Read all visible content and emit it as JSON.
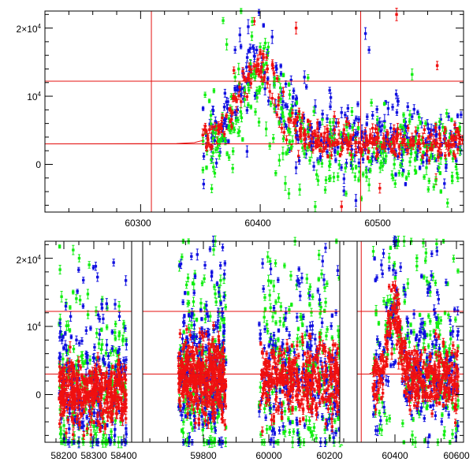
{
  "chart_data": [
    {
      "type": "scatter",
      "panel": "top",
      "title": "",
      "xlabel": "",
      "ylabel": "",
      "xlim": [
        60220,
        60570
      ],
      "ylim": [
        -7000,
        22500
      ],
      "xticks": [
        {
          "value": 60300,
          "label": "60300"
        },
        {
          "value": 60400,
          "label": "60400"
        },
        {
          "value": 60500,
          "label": "60500"
        }
      ],
      "xminor_step": 20,
      "yticks": [
        {
          "value": 20000,
          "label": "2×10",
          "exp": "4"
        },
        {
          "value": 10000,
          "label": "10",
          "exp": "4"
        },
        {
          "value": 0,
          "label": "0",
          "exp": ""
        }
      ],
      "yminor_step": 2000,
      "reference_lines": {
        "color": "#e4100f",
        "vertical_x": [
          60309,
          60484
        ],
        "horizontal_y": [
          12200,
          3000
        ]
      },
      "model_curve": {
        "color": "#e4100f",
        "points": [
          [
            60220,
            3000
          ],
          [
            60330,
            3050
          ],
          [
            60345,
            3200
          ],
          [
            60352,
            3500
          ]
        ]
      },
      "series": [
        {
          "color": "#1010e0",
          "points": [
            [
              60355,
              4200
            ],
            [
              60362,
              3500
            ],
            [
              60366,
              5200
            ],
            [
              60370,
              6500
            ],
            [
              60373,
              9200
            ],
            [
              60376,
              7100
            ],
            [
              60379,
              16800
            ],
            [
              60381,
              8000
            ],
            [
              60383,
              19000
            ],
            [
              60386,
              9600
            ],
            [
              60388,
              12400
            ],
            [
              60390,
              20200
            ],
            [
              60392,
              14400
            ],
            [
              60395,
              15900
            ],
            [
              60397,
              10300
            ],
            [
              60399,
              22300
            ],
            [
              60401,
              13900
            ],
            [
              60404,
              11100
            ],
            [
              60407,
              9300
            ],
            [
              60410,
              18700
            ],
            [
              60413,
              8500
            ],
            [
              60416,
              6300
            ],
            [
              60419,
              9200
            ],
            [
              60422,
              5500
            ],
            [
              60425,
              7200
            ],
            [
              60428,
              10800
            ],
            [
              60431,
              4200
            ],
            [
              60434,
              6000
            ],
            [
              60437,
              12800
            ],
            [
              60440,
              5200
            ],
            [
              60443,
              3300
            ],
            [
              60446,
              8500
            ],
            [
              60450,
              5800
            ],
            [
              60453,
              3200
            ],
            [
              60456,
              6700
            ],
            [
              60459,
              9800
            ],
            [
              60462,
              4500
            ],
            [
              60465,
              2500
            ],
            [
              60468,
              7600
            ],
            [
              60472,
              3800
            ],
            [
              60475,
              5600
            ],
            [
              60479,
              1300
            ],
            [
              60482,
              2500
            ],
            [
              60485,
              4800
            ],
            [
              60488,
              19200
            ],
            [
              60491,
              16800
            ],
            [
              60494,
              7200
            ],
            [
              60497,
              3500
            ],
            [
              60500,
              5500
            ],
            [
              60504,
              6300
            ],
            [
              60507,
              8200
            ],
            [
              60511,
              4300
            ],
            [
              60515,
              9300
            ],
            [
              60519,
              5200
            ],
            [
              60523,
              3900
            ],
            [
              60527,
              7000
            ],
            [
              60531,
              4600
            ],
            [
              60535,
              6100
            ],
            [
              60539,
              3300
            ],
            [
              60543,
              5000
            ],
            [
              60547,
              4200
            ],
            [
              60551,
              6600
            ],
            [
              60555,
              3800
            ],
            [
              60559,
              4500
            ],
            [
              60563,
              5300
            ],
            [
              60567,
              4000
            ],
            [
              60480,
              -5300
            ],
            [
              60470,
              -3900
            ],
            [
              60430,
              -500
            ],
            [
              60389,
              1900
            ]
          ]
        },
        {
          "color": "#10ee10",
          "points": [
            [
              60362,
              -1300
            ],
            [
              60366,
              3000
            ],
            [
              60369,
              21100
            ],
            [
              60372,
              17600
            ],
            [
              60374,
              1000
            ],
            [
              60377,
              -600
            ],
            [
              60379,
              12800
            ],
            [
              60382,
              14000
            ],
            [
              60384,
              22500
            ],
            [
              60387,
              9500
            ],
            [
              60390,
              8700
            ],
            [
              60393,
              18800
            ],
            [
              60396,
              7700
            ],
            [
              60399,
              6200
            ],
            [
              60402,
              11800
            ],
            [
              60405,
              5200
            ],
            [
              60408,
              2700
            ],
            [
              60411,
              3800
            ],
            [
              60413,
              -1300
            ],
            [
              60416,
              600
            ],
            [
              60419,
              1600
            ],
            [
              60421,
              -2800
            ],
            [
              60424,
              -4300
            ],
            [
              60427,
              3400
            ],
            [
              60430,
              7500
            ],
            [
              60433,
              -3700
            ],
            [
              60436,
              5300
            ],
            [
              60440,
              12700
            ],
            [
              60443,
              2000
            ],
            [
              60446,
              -6200
            ],
            [
              60449,
              3900
            ],
            [
              60452,
              6600
            ],
            [
              60455,
              -2300
            ],
            [
              60458,
              1100
            ],
            [
              60462,
              4400
            ],
            [
              60465,
              -1800
            ],
            [
              60469,
              3200
            ],
            [
              60472,
              5700
            ],
            [
              60476,
              200
            ],
            [
              60480,
              4100
            ],
            [
              60483,
              -1100
            ],
            [
              60487,
              2800
            ],
            [
              60491,
              -3000
            ],
            [
              60495,
              1700
            ],
            [
              60499,
              5100
            ],
            [
              60503,
              800
            ],
            [
              60507,
              3500
            ],
            [
              60511,
              -2000
            ],
            [
              60515,
              4600
            ],
            [
              60519,
              600
            ],
            [
              60523,
              2900
            ],
            [
              60527,
              13200
            ],
            [
              60531,
              1400
            ],
            [
              60535,
              3600
            ],
            [
              60539,
              -500
            ],
            [
              60543,
              2300
            ],
            [
              60547,
              5800
            ],
            [
              60551,
              900
            ],
            [
              60555,
              3100
            ],
            [
              60559,
              1800
            ],
            [
              60563,
              4300
            ],
            [
              60567,
              2100
            ]
          ]
        },
        {
          "color": "#f01010",
          "points": [
            [
              60352,
              4300
            ],
            [
              60356,
              3800
            ],
            [
              60360,
              4600
            ],
            [
              60364,
              3300
            ],
            [
              60368,
              4800
            ],
            [
              60372,
              5500
            ],
            [
              60376,
              6600
            ],
            [
              60380,
              7800
            ],
            [
              60384,
              9200
            ],
            [
              60387,
              10600
            ],
            [
              60390,
              12200
            ],
            [
              60393,
              13300
            ],
            [
              60396,
              14300
            ],
            [
              60398,
              15400
            ],
            [
              60400,
              16200
            ],
            [
              60402,
              14900
            ],
            [
              60404,
              13500
            ],
            [
              60406,
              11900
            ],
            [
              60408,
              10700
            ],
            [
              60410,
              9700
            ],
            [
              60412,
              8700
            ],
            [
              60414,
              7300
            ],
            [
              60416,
              6200
            ],
            [
              60418,
              5300
            ],
            [
              60420,
              4700
            ],
            [
              60422,
              3600
            ],
            [
              60424,
              5200
            ],
            [
              60426,
              2400
            ],
            [
              60428,
              6100
            ],
            [
              60430,
              4000
            ],
            [
              60432,
              1200
            ],
            [
              60434,
              5300
            ],
            [
              60436,
              7100
            ],
            [
              60438,
              3000
            ],
            [
              60440,
              4600
            ],
            [
              60442,
              5700
            ],
            [
              60444,
              2100
            ],
            [
              60446,
              4200
            ],
            [
              60448,
              6100
            ],
            [
              60450,
              3300
            ],
            [
              60452,
              1900
            ],
            [
              60454,
              4600
            ],
            [
              60456,
              5200
            ],
            [
              60458,
              2700
            ],
            [
              60460,
              4100
            ],
            [
              60462,
              7000
            ],
            [
              60464,
              3200
            ],
            [
              60466,
              4400
            ],
            [
              60468,
              2000
            ],
            [
              60470,
              5100
            ],
            [
              60472,
              3700
            ],
            [
              60474,
              6000
            ],
            [
              60476,
              2700
            ],
            [
              60478,
              4300
            ],
            [
              60480,
              3200
            ],
            [
              60482,
              5400
            ],
            [
              60484,
              2300
            ],
            [
              60486,
              3900
            ],
            [
              60488,
              4800
            ],
            [
              60490,
              2900
            ],
            [
              60492,
              4200
            ],
            [
              60494,
              5300
            ],
            [
              60496,
              3300
            ],
            [
              60498,
              4600
            ],
            [
              60500,
              2600
            ],
            [
              60503,
              3800
            ],
            [
              60506,
              4700
            ],
            [
              60509,
              2800
            ],
            [
              60512,
              4000
            ],
            [
              60515,
              5200
            ],
            [
              60518,
              3000
            ],
            [
              60521,
              4300
            ],
            [
              60524,
              2400
            ],
            [
              60527,
              3700
            ],
            [
              60530,
              4800
            ],
            [
              60533,
              3100
            ],
            [
              60536,
              3900
            ],
            [
              60539,
              2600
            ],
            [
              60542,
              4200
            ],
            [
              60545,
              3400
            ],
            [
              60548,
              14500
            ],
            [
              60551,
              3000
            ],
            [
              60554,
              4600
            ],
            [
              60557,
              2700
            ],
            [
              60560,
              4100
            ],
            [
              60563,
              3300
            ],
            [
              60566,
              4400
            ],
            [
              60569,
              3600
            ],
            [
              60395,
              21000
            ],
            [
              60430,
              20000
            ],
            [
              60468,
              -6200
            ],
            [
              60500,
              -3500
            ],
            [
              60547,
              -2200
            ],
            [
              60378,
              13800
            ],
            [
              60514,
              22000
            ]
          ]
        }
      ]
    },
    {
      "type": "scatter",
      "panel": "bottom",
      "title": "",
      "xlabel": "",
      "ylabel": "",
      "ylim": [
        -7000,
        22500
      ],
      "xticks": [
        {
          "value": 58200,
          "label": "58200"
        },
        {
          "value": 58300,
          "label": "58300"
        },
        {
          "value": 58400,
          "label": "58400"
        },
        {
          "value": 59800,
          "label": "59800"
        },
        {
          "value": 60000,
          "label": "60000"
        },
        {
          "value": 60200,
          "label": "60200"
        },
        {
          "value": 60400,
          "label": "60400"
        },
        {
          "value": 60600,
          "label": "60600"
        }
      ],
      "yticks": [
        {
          "value": 20000,
          "label": "2×10",
          "exp": "4"
        },
        {
          "value": 10000,
          "label": "10",
          "exp": "4"
        },
        {
          "value": 0,
          "label": "0",
          "exp": ""
        }
      ],
      "reference_lines": {
        "color": "#e4100f",
        "vertical_x": [
          60309
        ],
        "horizontal_y": [
          12200,
          3000
        ]
      },
      "segments": [
        {
          "x_start": 58170,
          "x_end": 58410,
          "center": 200,
          "spread": 2400,
          "red_peak": 0
        },
        {
          "x_start": 59730,
          "x_end": 59870,
          "center": 2500,
          "spread": 2800,
          "red_peak": 0
        },
        {
          "x_start": 59970,
          "x_end": 60250,
          "center": 2000,
          "spread": 2800,
          "red_peak": 0
        },
        {
          "x_start": 60340,
          "x_end": 60610,
          "center": 2500,
          "spread": 2400,
          "red_peak": 60400
        }
      ],
      "series": [
        {
          "color": "#1010e0"
        },
        {
          "color": "#10ee10"
        },
        {
          "color": "#f01010"
        }
      ]
    }
  ]
}
